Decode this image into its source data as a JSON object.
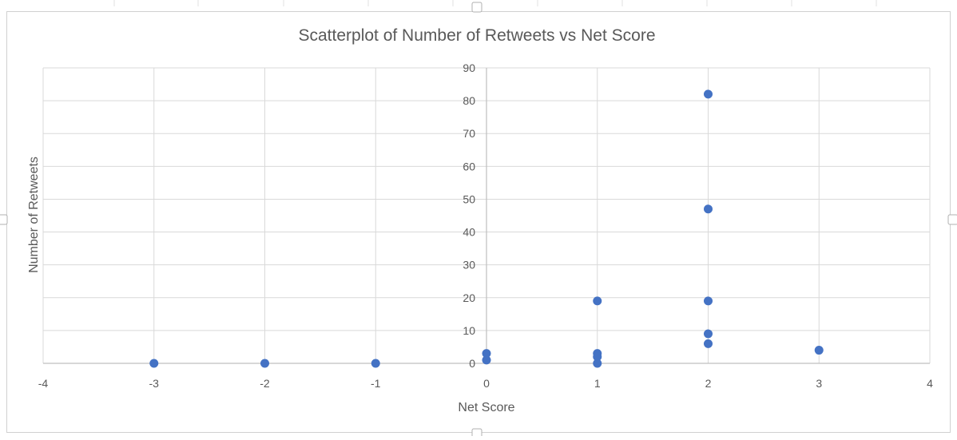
{
  "chart_data": {
    "type": "scatter",
    "title": "Scatterplot of Number of Retweets vs Net Score",
    "xlabel": "Net Score",
    "ylabel": "Number of Retweets",
    "xlim": [
      -4,
      4
    ],
    "ylim": [
      0,
      90
    ],
    "xticks": [
      -4,
      -3,
      -2,
      -1,
      0,
      1,
      2,
      3,
      4
    ],
    "yticks": [
      0,
      10,
      20,
      30,
      40,
      50,
      60,
      70,
      80,
      90
    ],
    "grid": true,
    "legend": "none",
    "marker_color": "#4472c4",
    "series": [
      {
        "points": [
          {
            "x": -3,
            "y": 0
          },
          {
            "x": -2,
            "y": 0
          },
          {
            "x": -1,
            "y": 0
          },
          {
            "x": 0,
            "y": 3
          },
          {
            "x": 0,
            "y": 1
          },
          {
            "x": 1,
            "y": 19
          },
          {
            "x": 1,
            "y": 3
          },
          {
            "x": 1,
            "y": 2
          },
          {
            "x": 1,
            "y": 0
          },
          {
            "x": 2,
            "y": 82
          },
          {
            "x": 2,
            "y": 47
          },
          {
            "x": 2,
            "y": 19
          },
          {
            "x": 2,
            "y": 9
          },
          {
            "x": 2,
            "y": 6
          },
          {
            "x": 3,
            "y": 4
          }
        ]
      }
    ]
  }
}
